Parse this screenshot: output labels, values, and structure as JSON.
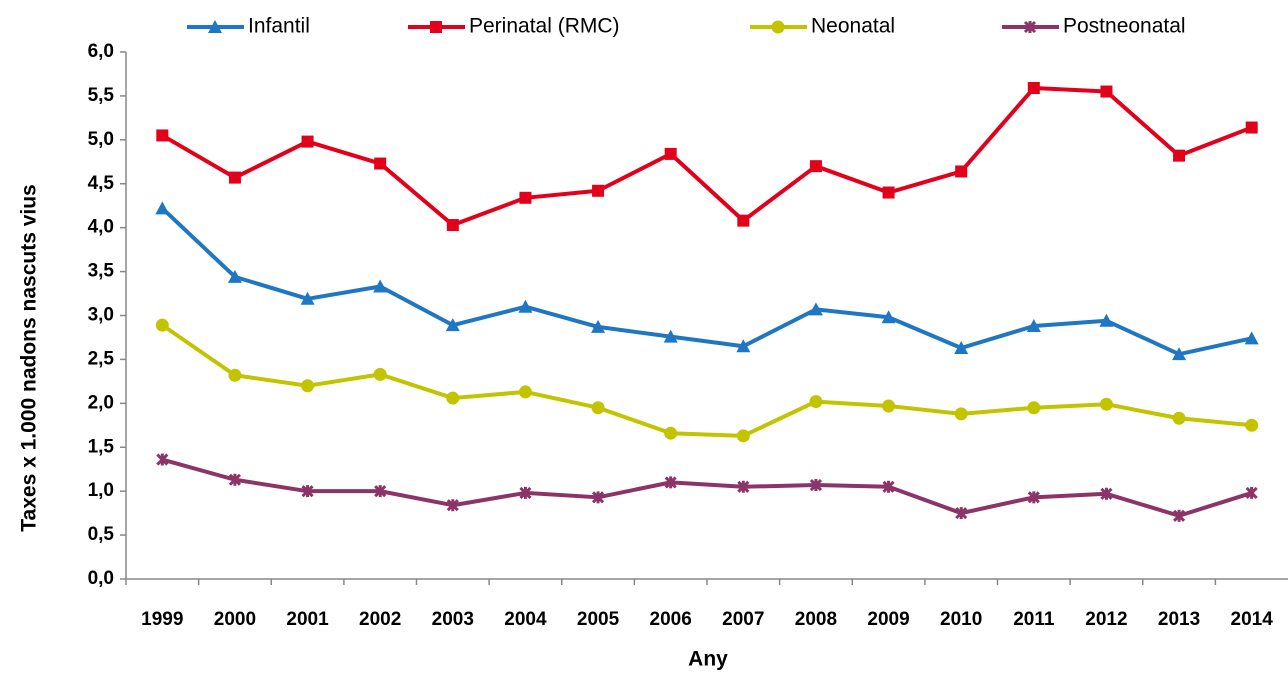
{
  "chart_data": {
    "type": "line",
    "y_label": "Taxes x 1.000 nadons nascuts vius",
    "x_label": "Any",
    "categories": [
      "1999",
      "2000",
      "2001",
      "2002",
      "2003",
      "2004",
      "2005",
      "2006",
      "2007",
      "2008",
      "2009",
      "2010",
      "2011",
      "2012",
      "2013",
      "2014"
    ],
    "series": [
      {
        "name": "Infantil",
        "color": "#1f77c4",
        "marker": "triangle",
        "values": [
          4.22,
          3.44,
          3.19,
          3.33,
          2.89,
          3.1,
          2.87,
          2.76,
          2.65,
          3.07,
          2.98,
          2.63,
          2.88,
          2.94,
          2.56,
          2.74
        ]
      },
      {
        "name": "Perinatal (RMC)",
        "color": "#e3001b",
        "marker": "square",
        "values": [
          5.05,
          4.57,
          4.98,
          4.73,
          4.03,
          4.34,
          4.42,
          4.84,
          4.08,
          4.7,
          4.4,
          4.64,
          5.59,
          5.55,
          4.82,
          5.14
        ]
      },
      {
        "name": "Neonatal",
        "color": "#c2c400",
        "marker": "circle",
        "values": [
          2.89,
          2.32,
          2.2,
          2.33,
          2.06,
          2.13,
          1.95,
          1.66,
          1.63,
          2.02,
          1.97,
          1.88,
          1.95,
          1.99,
          1.83,
          1.75
        ]
      },
      {
        "name": "Postneonatal",
        "color": "#8c3468",
        "marker": "star",
        "values": [
          1.36,
          1.13,
          1.0,
          1.0,
          0.84,
          0.98,
          0.93,
          1.1,
          1.05,
          1.07,
          1.05,
          0.75,
          0.93,
          0.97,
          0.72,
          0.98
        ]
      }
    ],
    "ylim": [
      0,
      6
    ],
    "yticks": [
      {
        "value": 0,
        "label": "0,0"
      },
      {
        "value": 0.5,
        "label": "0,5"
      },
      {
        "value": 1,
        "label": "1,0"
      },
      {
        "value": 1.5,
        "label": "1,5"
      },
      {
        "value": 2,
        "label": "2,0"
      },
      {
        "value": 2.5,
        "label": "2,5"
      },
      {
        "value": 3,
        "label": "3,0"
      },
      {
        "value": 3.5,
        "label": "3,5"
      },
      {
        "value": 4,
        "label": "4,0"
      },
      {
        "value": 4.5,
        "label": "4,5"
      },
      {
        "value": 5,
        "label": "5,0"
      },
      {
        "value": 5.5,
        "label": "5,5"
      },
      {
        "value": 6,
        "label": "6,0"
      }
    ],
    "grid": false,
    "legend": "top"
  }
}
